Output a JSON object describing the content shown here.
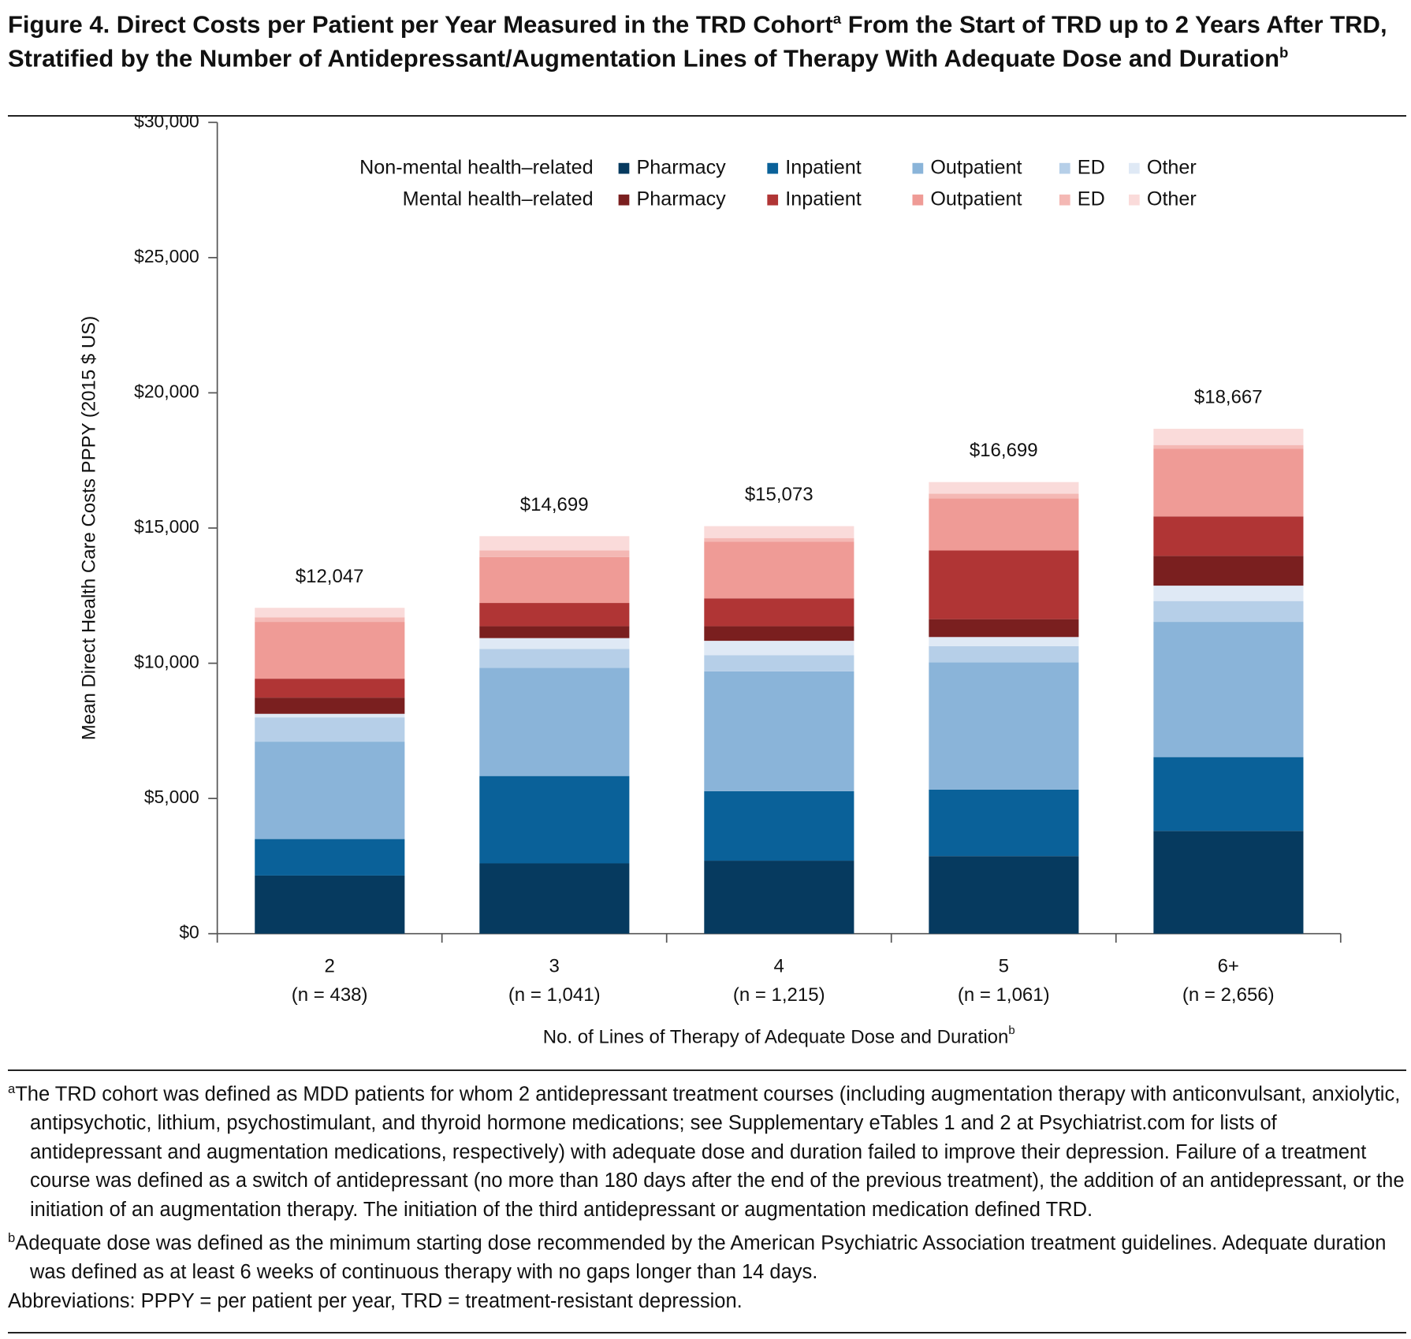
{
  "chart_data": {
    "type": "bar",
    "stacked": true,
    "title": [
      "Figure 4. Direct Costs per Patient per Year Measured in the TRD Cohort",
      "a",
      "From the Start of TRD up to 2 Years After TRD, Stratified by the Number of Antidepressant/Augmentation Lines of Therapy With Adequate Dose and Duration",
      "b"
    ],
    "ylabel": "Mean Direct Health Care Costs PPPY (2015 $ US)",
    "xlabel": [
      "No. of Lines of Therapy of Adequate Dose and Duration",
      "b"
    ],
    "categories": [
      "2",
      "3",
      "4",
      "5",
      "6+"
    ],
    "category_sublabels": [
      "(n = 438)",
      "(n = 1,041)",
      "(n = 1,215)",
      "(n = 1,061)",
      "(n = 2,656)"
    ],
    "ylim": [
      0,
      30000
    ],
    "yticks": [
      {
        "value": 0,
        "label": "$0"
      },
      {
        "value": 5000,
        "label": "$5,000"
      },
      {
        "value": 10000,
        "label": "$10,000"
      },
      {
        "value": 15000,
        "label": "$15,000"
      },
      {
        "value": 20000,
        "label": "$20,000"
      },
      {
        "value": 25000,
        "label": "$25,000"
      },
      {
        "value": 30000,
        "label": "$30,000"
      }
    ],
    "series_groups": [
      {
        "name": "Non-mental health–related",
        "series": [
          {
            "name": "Pharmacy",
            "color": "#063a5f",
            "values": [
              2150,
              2600,
              2700,
              2870,
              3800
            ]
          },
          {
            "name": "Inpatient",
            "color": "#0a6199",
            "values": [
              1350,
              3230,
              2570,
              2460,
              2730
            ]
          },
          {
            "name": "Outpatient",
            "color": "#8ab4d9",
            "values": [
              3600,
              4000,
              4430,
              4700,
              5000
            ]
          },
          {
            "name": "ED",
            "color": "#b6cfe8",
            "values": [
              900,
              700,
              600,
              600,
              770
            ]
          },
          {
            "name": "Other",
            "color": "#dfe9f5",
            "values": [
              130,
              400,
              530,
              340,
              570
            ]
          }
        ]
      },
      {
        "name": "Mental health–related",
        "series": [
          {
            "name": "Pharmacy",
            "color": "#7a1f1f",
            "values": [
              600,
              440,
              540,
              660,
              1100
            ]
          },
          {
            "name": "Inpatient",
            "color": "#b03535",
            "values": [
              700,
              860,
              1030,
              2540,
              1460
            ]
          },
          {
            "name": "Outpatient",
            "color": "#ef9b96",
            "values": [
              2100,
              1700,
              2100,
              1930,
              2500
            ]
          },
          {
            "name": "ED",
            "color": "#f4b8b4",
            "values": [
              170,
              240,
              130,
              170,
              140
            ]
          },
          {
            "name": "Other",
            "color": "#fadbda",
            "values": [
              350,
              530,
              440,
              430,
              600
            ]
          }
        ]
      }
    ],
    "totals": {
      "values": [
        12047,
        14699,
        15073,
        16699,
        18667
      ],
      "value_labels": [
        "$12,047",
        "$14,699",
        "$15,073",
        "$16,699",
        "$18,667"
      ]
    },
    "footnotes": [
      {
        "mark": "a",
        "text": "The TRD cohort was defined as MDD patients for whom 2 antidepressant treatment courses (including augmentation therapy with anticonvulsant, anxiolytic, antipsychotic, lithium, psychostimulant, and thyroid hormone medications; see Supplementary eTables 1 and 2 at Psychiatrist.com for lists of antidepressant and augmentation medications, respectively) with adequate dose and duration failed to improve their depression. Failure of a treatment course was defined as a switch of antidepressant (no more than 180 days after the end of the previous treatment), the addition of an antidepressant, or the initiation of an augmentation therapy. The initiation of the third antidepressant or augmentation medication defined TRD."
      },
      {
        "mark": "b",
        "text": "Adequate dose was defined as the minimum starting dose recommended by the American Psychiatric Association treatment guidelines. Adequate duration was defined as at least 6 weeks of continuous therapy with no gaps longer than 14 days."
      }
    ],
    "abbreviations": "Abbreviations: PPPY = per patient per year, TRD = treatment-resistant depression."
  }
}
